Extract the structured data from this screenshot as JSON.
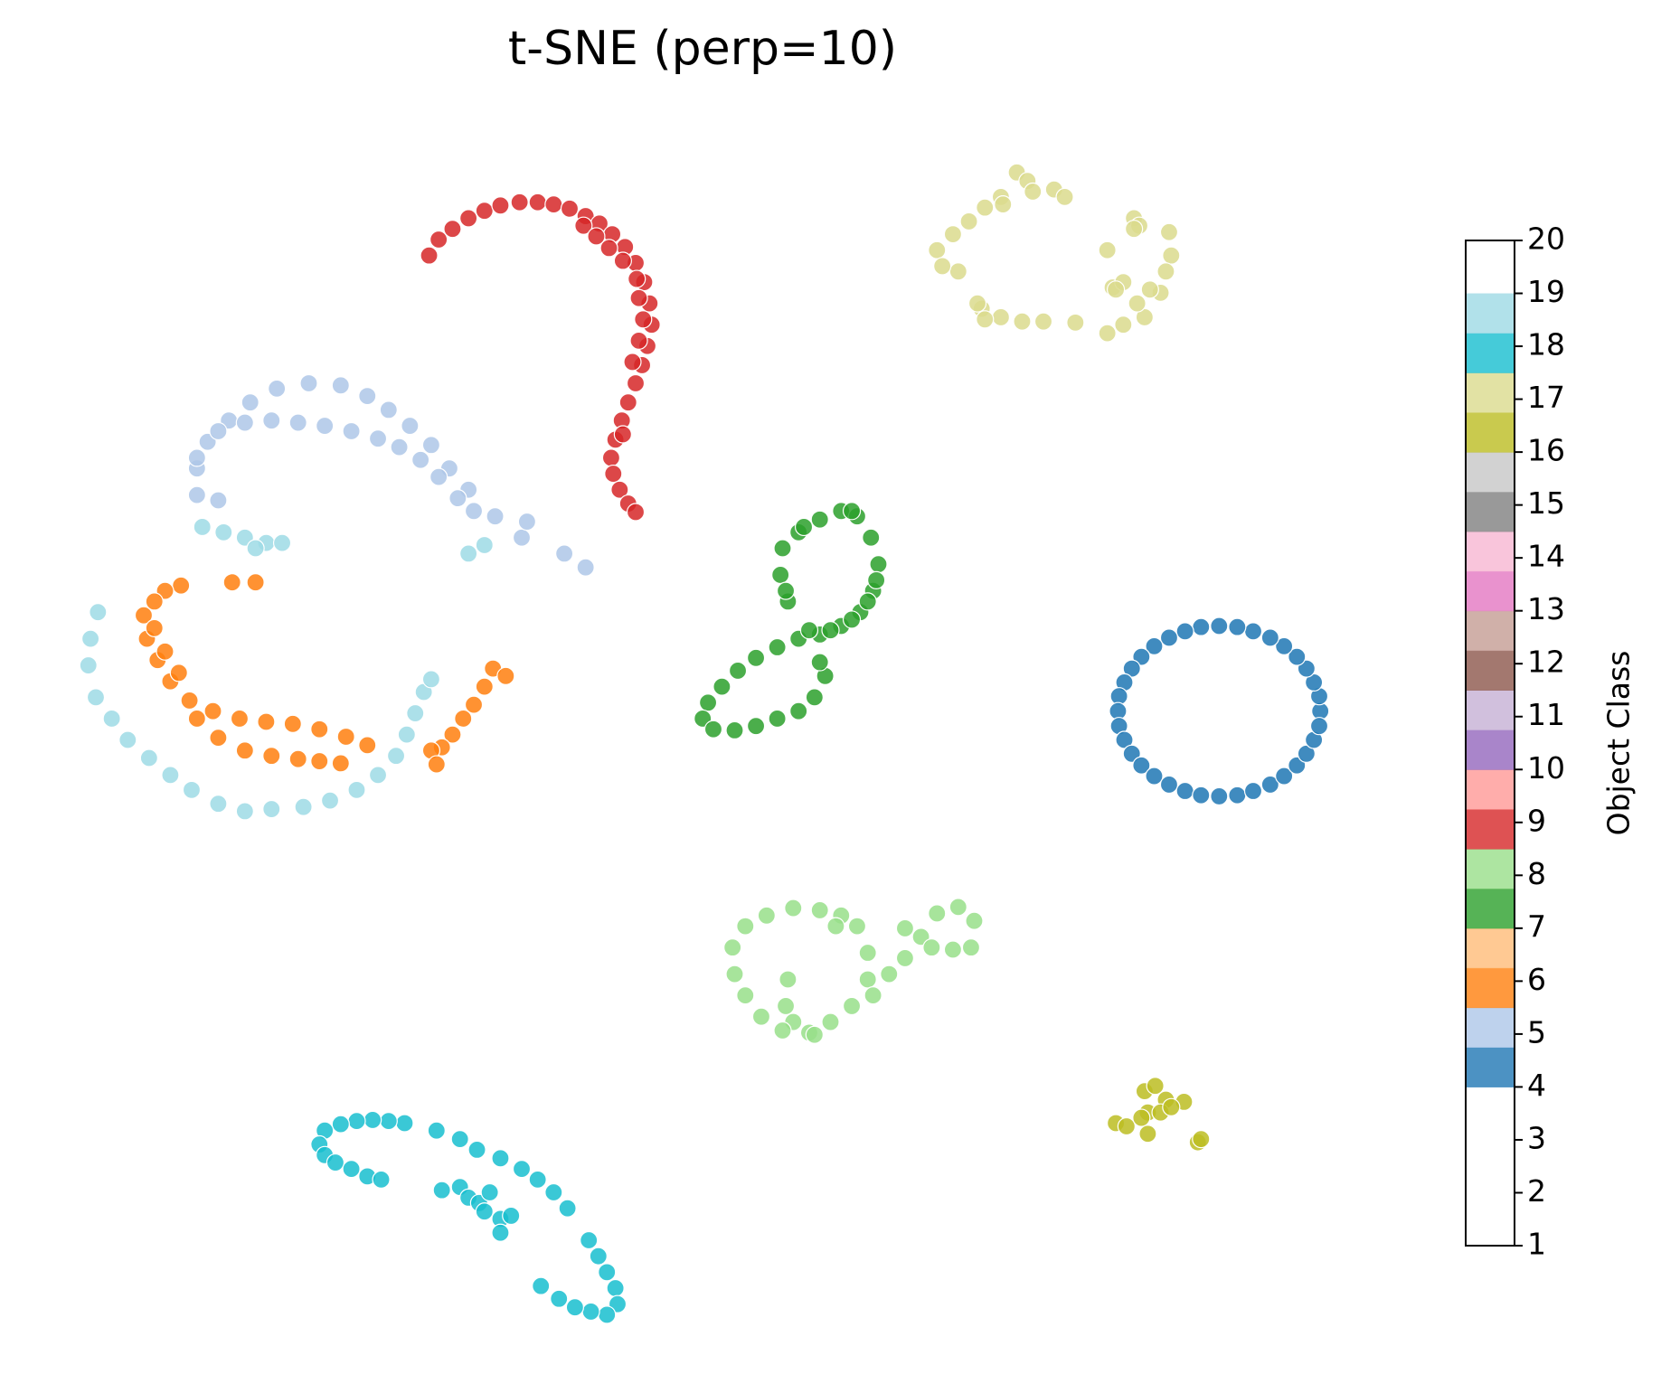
{
  "chart_data": {
    "type": "scatter",
    "title": "t-SNE (perp=10)",
    "xlim": [
      0,
      156
    ],
    "ylim": [
      0,
      130
    ],
    "series": [
      {
        "color": "#1f77b4",
        "x": [
          124.0,
          123.9,
          123.4,
          122.7,
          121.8,
          120.6,
          119.3,
          117.7,
          116.2,
          114.5,
          112.8,
          111.3,
          109.8,
          108.4,
          107.2,
          106.3,
          105.6,
          105.1,
          105.0,
          105.1,
          105.6,
          106.3,
          107.2,
          108.4,
          109.8,
          111.3,
          112.8,
          114.5,
          116.2,
          117.7,
          119.3,
          120.6,
          121.8,
          122.7,
          123.4,
          123.9
        ],
        "values": [
          63.2,
          64.6,
          65.9,
          67.2,
          68.3,
          69.3,
          70.1,
          70.7,
          71.1,
          71.2,
          71.1,
          70.7,
          70.1,
          69.3,
          68.3,
          67.2,
          65.9,
          64.6,
          63.2,
          61.8,
          60.5,
          59.2,
          58.1,
          57.1,
          56.3,
          55.7,
          55.3,
          55.2,
          55.3,
          55.7,
          56.3,
          57.1,
          58.1,
          59.2,
          60.5,
          61.8
        ]
      },
      {
        "color": "#aec7e8",
        "x": [
          18.5,
          18.5,
          19.5,
          21.5,
          23.5,
          26.0,
          29.0,
          32.0,
          34.5,
          36.5,
          38.5,
          40.5,
          42.2,
          44.0,
          46.5,
          49.0,
          49.5,
          53.0,
          55.0,
          20.5,
          23.0,
          25.5,
          28.0,
          30.5,
          33.0,
          35.5,
          37.5,
          39.5,
          41.2,
          43.0,
          44.5,
          18.5,
          20.5
        ],
        "values": [
          83.5,
          86.0,
          88.5,
          90.5,
          92.2,
          93.5,
          94.0,
          93.8,
          92.8,
          91.5,
          90.0,
          88.2,
          86.0,
          84.0,
          81.5,
          79.5,
          81.0,
          78.0,
          76.7,
          89.5,
          90.3,
          90.5,
          90.3,
          90.0,
          89.5,
          88.8,
          88.0,
          86.8,
          85.2,
          83.2,
          82.0,
          87.0,
          83.0
        ]
      },
      {
        "color": "#ff7f0e",
        "x": [
          17.0,
          15.5,
          14.5,
          13.5,
          13.8,
          14.8,
          16.0,
          17.8,
          20.0,
          22.5,
          25.0,
          27.5,
          30.0,
          32.5,
          34.5,
          14.5,
          15.5,
          16.8,
          18.5,
          20.5,
          23.0,
          25.5,
          28.0,
          30.0,
          32.0,
          46.3,
          45.5,
          44.5,
          43.5,
          42.5,
          41.5,
          40.5,
          41.0,
          21.8,
          24.0,
          47.5
        ],
        "values": [
          75.0,
          74.5,
          73.5,
          72.2,
          70.0,
          68.0,
          66.0,
          64.2,
          63.2,
          62.5,
          62.2,
          62.0,
          61.5,
          60.8,
          60.0,
          71.0,
          68.8,
          66.8,
          62.5,
          60.7,
          59.5,
          59.0,
          58.7,
          58.5,
          58.3,
          67.2,
          65.5,
          63.8,
          62.5,
          61.0,
          59.8,
          59.5,
          58.2,
          75.3,
          75.3,
          66.5
        ]
      },
      {
        "color": "#2ca02c",
        "x": [
          74.0,
          73.3,
          73.5,
          75.0,
          77.0,
          79.0,
          80.5,
          81.8,
          82.5,
          82.0,
          80.8,
          79.0,
          77.0,
          75.0,
          73.0,
          71.0,
          69.3,
          67.8,
          66.5,
          66.0,
          67.0,
          69.0,
          71.0,
          73.0,
          75.0,
          76.5,
          77.5,
          77.0,
          76.0,
          78.0,
          80.0,
          81.5,
          82.3,
          73.8,
          75.5,
          80.0
        ],
        "values": [
          73.5,
          76.0,
          78.5,
          80.0,
          81.2,
          82.0,
          81.5,
          79.5,
          77.0,
          74.5,
          72.5,
          71.2,
          70.4,
          70.0,
          69.2,
          68.2,
          67.0,
          65.5,
          64.0,
          62.5,
          61.5,
          61.4,
          61.8,
          62.5,
          63.2,
          64.5,
          66.5,
          67.8,
          70.8,
          70.8,
          71.8,
          73.5,
          75.5,
          74.5,
          80.5,
          82.0
        ]
      },
      {
        "color": "#98df8a",
        "x": [
          74.0,
          73.8,
          74.5,
          76.0,
          78.0,
          80.0,
          81.5,
          81.5,
          80.5,
          79.0,
          77.0,
          74.5,
          72.0,
          70.0,
          68.8,
          69.0,
          70.0,
          71.5,
          73.5,
          76.5,
          82.0,
          83.5,
          85.0,
          86.5,
          88.0,
          90.0,
          91.5,
          91.2,
          89.5,
          87.5,
          85.0,
          78.5
        ],
        "values": [
          38.0,
          35.5,
          34.0,
          33.0,
          34.0,
          35.5,
          38.0,
          40.5,
          43.0,
          44.0,
          44.5,
          44.7,
          44.0,
          43.0,
          41.0,
          38.5,
          36.5,
          34.5,
          33.2,
          32.8,
          36.5,
          38.5,
          40.0,
          42.0,
          44.2,
          44.8,
          43.5,
          41.0,
          40.8,
          41.0,
          42.8,
          43.0
        ]
      },
      {
        "color": "#d62728",
        "x": [
          40.3,
          41.2,
          42.5,
          44.0,
          45.5,
          47.0,
          48.8,
          50.5,
          52.0,
          53.5,
          55.0,
          56.3,
          57.5,
          58.7,
          59.7,
          60.5,
          61.0,
          61.2,
          60.8,
          60.3,
          59.7,
          59.0,
          58.4,
          57.8,
          57.4,
          57.6,
          58.2,
          59.0,
          59.7,
          54.8,
          56.0,
          57.2,
          58.5,
          59.8,
          60.0,
          60.4,
          60.0,
          59.4,
          58.5
        ],
        "values": [
          106.0,
          107.5,
          108.5,
          109.5,
          110.2,
          110.7,
          111.0,
          111.0,
          110.8,
          110.4,
          109.7,
          109.0,
          108.0,
          106.8,
          105.3,
          103.5,
          101.5,
          99.5,
          97.5,
          95.7,
          94.0,
          92.2,
          90.5,
          88.7,
          87.0,
          85.5,
          84.0,
          82.7,
          81.9,
          108.8,
          107.8,
          106.7,
          105.5,
          103.8,
          102.0,
          100.0,
          98.0,
          96.0,
          89.2
        ]
      },
      {
        "color": "#bcbd22",
        "x": [
          104.8,
          105.8,
          107.5,
          108.5,
          109.5,
          107.8,
          109.0,
          107.2,
          111.2,
          107.8,
          112.5,
          112.8,
          110.0
        ],
        "values": [
          24.5,
          24.2,
          27.5,
          28.0,
          26.7,
          25.5,
          25.5,
          25.0,
          26.5,
          23.5,
          22.7,
          23.0,
          26.0
        ]
      },
      {
        "color": "#dbdb8d",
        "x": [
          88.0,
          89.5,
          91.0,
          92.5,
          94.0,
          95.5,
          96.5,
          99.0,
          100.0,
          106.5,
          107.0,
          109.8,
          110.0,
          109.5,
          109.0,
          107.5,
          105.5,
          104.0,
          101.0,
          98.0,
          96.0,
          94.0,
          92.2,
          92.5,
          90.0,
          88.5,
          104.5,
          105.5,
          104.0,
          106.5,
          94.2,
          97.0,
          91.8,
          106.8,
          108.0,
          104.8
        ],
        "values": [
          106.5,
          108.0,
          109.2,
          110.5,
          111.5,
          113.8,
          113.0,
          112.2,
          111.5,
          109.5,
          108.8,
          108.2,
          106.0,
          104.5,
          102.5,
          100.2,
          99.5,
          98.7,
          99.7,
          99.8,
          99.8,
          100.2,
          101.0,
          100.0,
          104.5,
          105.0,
          103.0,
          103.5,
          106.5,
          108.5,
          110.8,
          112.0,
          101.5,
          101.5,
          102.8,
          102.8
        ]
      },
      {
        "color": "#17becf",
        "x": [
          38.0,
          36.5,
          35.0,
          33.5,
          32.0,
          30.5,
          30.0,
          30.5,
          31.5,
          33.0,
          34.5,
          35.8,
          41.0,
          43.2,
          44.8,
          47.0,
          49.0,
          50.5,
          52.0,
          53.3,
          55.3,
          56.2,
          57.0,
          57.8,
          58.0,
          57.0,
          55.5,
          54.0,
          52.5,
          50.8,
          41.5,
          43.2,
          44.0,
          45.0,
          46.0,
          45.5,
          47.0,
          48.0,
          47.0
        ],
        "values": [
          24.5,
          24.7,
          24.8,
          24.7,
          24.4,
          23.8,
          22.5,
          21.5,
          20.8,
          20.2,
          19.5,
          19.2,
          23.8,
          23.0,
          22.0,
          21.2,
          20.2,
          19.2,
          18.0,
          16.5,
          13.5,
          12.0,
          10.5,
          9.0,
          7.5,
          6.5,
          6.8,
          7.2,
          8.0,
          9.2,
          18.2,
          18.5,
          17.5,
          17.0,
          18.0,
          16.2,
          15.5,
          15.8,
          14.2
        ]
      },
      {
        "color": "#9edae5",
        "x": [
          9.2,
          8.5,
          8.3,
          9.0,
          10.5,
          12.0,
          14.0,
          16.0,
          18.0,
          20.5,
          23.0,
          25.5,
          28.5,
          31.0,
          33.5,
          35.5,
          37.2,
          38.2,
          39.0,
          39.8,
          40.5,
          19.0,
          21.0,
          23.0,
          25.0,
          26.5,
          24.0,
          44.0,
          45.5
        ],
        "values": [
          72.5,
          70.0,
          67.5,
          64.5,
          62.5,
          60.5,
          58.8,
          57.2,
          55.8,
          54.5,
          53.8,
          54.0,
          54.2,
          54.8,
          55.8,
          57.2,
          59.0,
          61.0,
          63.0,
          65.0,
          66.2,
          80.5,
          80.0,
          79.5,
          79.0,
          79.0,
          78.5,
          78.0,
          78.8
        ]
      }
    ],
    "colorbar": {
      "label": "Object Class",
      "lim": [
        1,
        20
      ],
      "color_range": [
        4,
        19
      ],
      "ticks": [
        1,
        2,
        3,
        4,
        5,
        6,
        7,
        8,
        9,
        10,
        11,
        12,
        13,
        14,
        15,
        16,
        17,
        18,
        19,
        20
      ],
      "colors": [
        "#1f77b4",
        "#aec7e8",
        "#ff7f0e",
        "#ffbb78",
        "#2ca02c",
        "#98df8a",
        "#d62728",
        "#ff9896",
        "#9467bd",
        "#c5b0d5",
        "#8c564b",
        "#c49c94",
        "#e377c2",
        "#f7b6d2",
        "#7f7f7f",
        "#c7c7c7",
        "#bcbd22",
        "#dbdb8d",
        "#17becf",
        "#9edae5"
      ]
    }
  }
}
